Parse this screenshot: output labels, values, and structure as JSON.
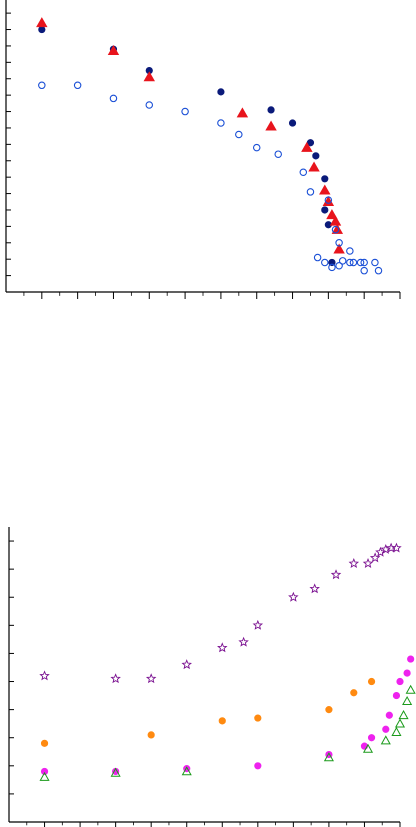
{
  "colors": {
    "axis": "#000000",
    "navy": "#0a1a7a",
    "red": "#e8141c",
    "blue_open": "#1a4fd6",
    "purple": "#7a1090",
    "orange": "#ff8a10",
    "magenta": "#ee22ee",
    "green": "#1a9a1a"
  },
  "chart_data": [
    {
      "type": "scatter",
      "title": "",
      "xlabel": "",
      "ylabel": "",
      "xlim": [
        0,
        11
      ],
      "ylim": [
        0,
        17.8
      ],
      "xticks": [
        1,
        2,
        3,
        4,
        5,
        6,
        7,
        8,
        9,
        10,
        11
      ],
      "yticks": [
        1,
        2,
        3,
        4,
        5,
        6,
        7,
        8,
        9,
        10,
        11,
        12,
        13,
        14,
        15,
        16,
        17
      ],
      "grid": false,
      "series": [
        {
          "marker": "filled-circle",
          "color": "navy",
          "points": [
            [
              1.0,
              16.0
            ],
            [
              3.0,
              14.8
            ],
            [
              4.0,
              13.5
            ],
            [
              6.0,
              12.2
            ],
            [
              7.4,
              11.1
            ],
            [
              8.0,
              10.3
            ],
            [
              8.5,
              9.1
            ],
            [
              8.65,
              8.3
            ],
            [
              8.9,
              6.9
            ],
            [
              8.9,
              5.0
            ],
            [
              9.0,
              4.1
            ],
            [
              9.1,
              1.8
            ]
          ]
        },
        {
          "marker": "filled-triangle",
          "color": "red",
          "points": [
            [
              1.0,
              16.4
            ],
            [
              3.0,
              14.7
            ],
            [
              4.0,
              13.1
            ],
            [
              6.6,
              10.9
            ],
            [
              7.4,
              10.1
            ],
            [
              8.4,
              8.8
            ],
            [
              8.6,
              7.6
            ],
            [
              8.9,
              6.2
            ],
            [
              9.0,
              5.5
            ],
            [
              9.1,
              4.7
            ],
            [
              9.2,
              4.3
            ],
            [
              9.25,
              3.8
            ],
            [
              9.3,
              2.6
            ]
          ]
        },
        {
          "marker": "open-circle",
          "color": "blue_open",
          "points": [
            [
              1.0,
              12.6
            ],
            [
              2.0,
              12.6
            ],
            [
              3.0,
              11.8
            ],
            [
              4.0,
              11.4
            ],
            [
              5.0,
              11.0
            ],
            [
              6.0,
              10.3
            ],
            [
              6.5,
              9.6
            ],
            [
              7.0,
              8.8
            ],
            [
              7.6,
              8.4
            ],
            [
              8.3,
              7.3
            ],
            [
              8.5,
              6.1
            ],
            [
              9.0,
              5.6
            ],
            [
              9.2,
              3.8
            ],
            [
              9.3,
              3.0
            ],
            [
              9.6,
              2.5
            ],
            [
              8.7,
              2.1
            ],
            [
              8.9,
              1.8
            ],
            [
              9.1,
              1.5
            ],
            [
              9.3,
              1.6
            ],
            [
              9.4,
              1.9
            ],
            [
              9.6,
              1.8
            ],
            [
              9.7,
              1.8
            ],
            [
              9.9,
              1.8
            ],
            [
              10.0,
              1.8
            ],
            [
              10.3,
              1.8
            ],
            [
              10.0,
              1.3
            ],
            [
              10.4,
              1.3
            ]
          ]
        }
      ]
    },
    {
      "type": "scatter",
      "title": "",
      "xlabel": "",
      "ylabel": "",
      "xlim": [
        0,
        11
      ],
      "ylim": [
        0,
        10.5
      ],
      "xticks": [
        1,
        2,
        3,
        4,
        5,
        6,
        7,
        8,
        9,
        10,
        11
      ],
      "yticks": [
        1,
        2,
        3,
        4,
        5,
        6,
        7,
        8,
        9,
        10
      ],
      "grid": false,
      "series": [
        {
          "marker": "open-star",
          "color": "purple",
          "points": [
            [
              1.0,
              5.2
            ],
            [
              3.0,
              5.1
            ],
            [
              4.0,
              5.1
            ],
            [
              5.0,
              5.6
            ],
            [
              6.0,
              6.2
            ],
            [
              6.6,
              6.4
            ],
            [
              7.0,
              7.0
            ],
            [
              8.0,
              8.0
            ],
            [
              8.6,
              8.3
            ],
            [
              9.2,
              8.8
            ],
            [
              9.7,
              9.2
            ],
            [
              10.1,
              9.2
            ],
            [
              10.3,
              9.4
            ],
            [
              10.45,
              9.6
            ],
            [
              10.6,
              9.7
            ],
            [
              10.75,
              9.75
            ],
            [
              10.9,
              9.75
            ]
          ]
        },
        {
          "marker": "filled-circle",
          "color": "orange",
          "points": [
            [
              1.0,
              2.8
            ],
            [
              4.0,
              3.1
            ],
            [
              6.0,
              3.6
            ],
            [
              7.0,
              3.7
            ],
            [
              9.0,
              4.0
            ],
            [
              9.7,
              4.6
            ],
            [
              10.2,
              5.0
            ]
          ]
        },
        {
          "marker": "filled-circle",
          "color": "magenta",
          "points": [
            [
              1.0,
              1.8
            ],
            [
              3.0,
              1.8
            ],
            [
              5.0,
              1.9
            ],
            [
              7.0,
              2.0
            ],
            [
              9.0,
              2.4
            ],
            [
              10.0,
              2.7
            ],
            [
              10.2,
              3.0
            ],
            [
              10.6,
              3.3
            ],
            [
              10.7,
              3.8
            ],
            [
              10.9,
              4.5
            ],
            [
              11.0,
              5.0
            ],
            [
              11.2,
              5.3
            ],
            [
              11.3,
              5.8
            ]
          ]
        },
        {
          "marker": "open-triangle",
          "color": "green",
          "points": [
            [
              1.0,
              1.6
            ],
            [
              3.0,
              1.75
            ],
            [
              5.0,
              1.8
            ],
            [
              9.0,
              2.3
            ],
            [
              10.1,
              2.6
            ],
            [
              10.6,
              2.9
            ],
            [
              10.9,
              3.2
            ],
            [
              11.0,
              3.5
            ],
            [
              11.1,
              3.8
            ],
            [
              11.2,
              4.3
            ],
            [
              11.3,
              4.7
            ]
          ]
        }
      ]
    }
  ]
}
